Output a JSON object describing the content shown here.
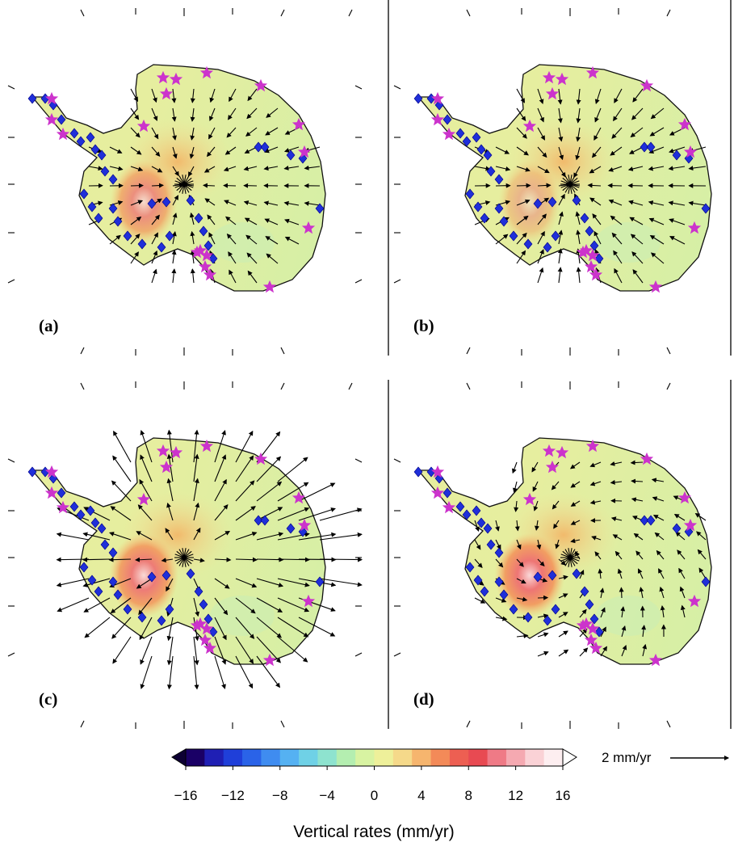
{
  "figure": {
    "panels": [
      {
        "id": "a",
        "label": "(a)",
        "pattern": "inward",
        "strength": 0.9,
        "hot": 0.75
      },
      {
        "id": "b",
        "label": "(b)",
        "pattern": "inward",
        "strength": 1.0,
        "hot": 0.45
      },
      {
        "id": "c",
        "label": "(c)",
        "pattern": "outward",
        "strength": 1.6,
        "hot": 0.9
      },
      {
        "id": "d",
        "label": "(d)",
        "pattern": "swirl",
        "strength": 0.8,
        "hot": 0.95
      }
    ],
    "colorbar": {
      "title": "Vertical rates (mm/yr)",
      "min": -16,
      "max": 16,
      "step": 1.6,
      "ticks": [
        "−16",
        "−12",
        "−8",
        "−4",
        "0",
        "4",
        "8",
        "12",
        "16"
      ],
      "tick_values": [
        -16,
        -12,
        -8,
        -4,
        0,
        4,
        8,
        12,
        16
      ],
      "colors": [
        "#1a0066",
        "#1f1fb4",
        "#1f3fd9",
        "#2a63e8",
        "#3f8cf0",
        "#55b1f2",
        "#6fd1e6",
        "#8ee3cf",
        "#b4eeb0",
        "#d8f3a2",
        "#eef09a",
        "#f5d98a",
        "#f6b56e",
        "#f38a58",
        "#ed5f52",
        "#e84a52",
        "#ef7a86",
        "#f5a9b1",
        "#fad2d6",
        "#fdeef0"
      ]
    },
    "scale_arrow": {
      "label": "2 mm/yr"
    },
    "markers": {
      "gps_color": "#1f2fd9",
      "star_color": "#cc33cc",
      "gps_symbol": "diamond-icon",
      "station_symbol": "star-icon"
    }
  }
}
